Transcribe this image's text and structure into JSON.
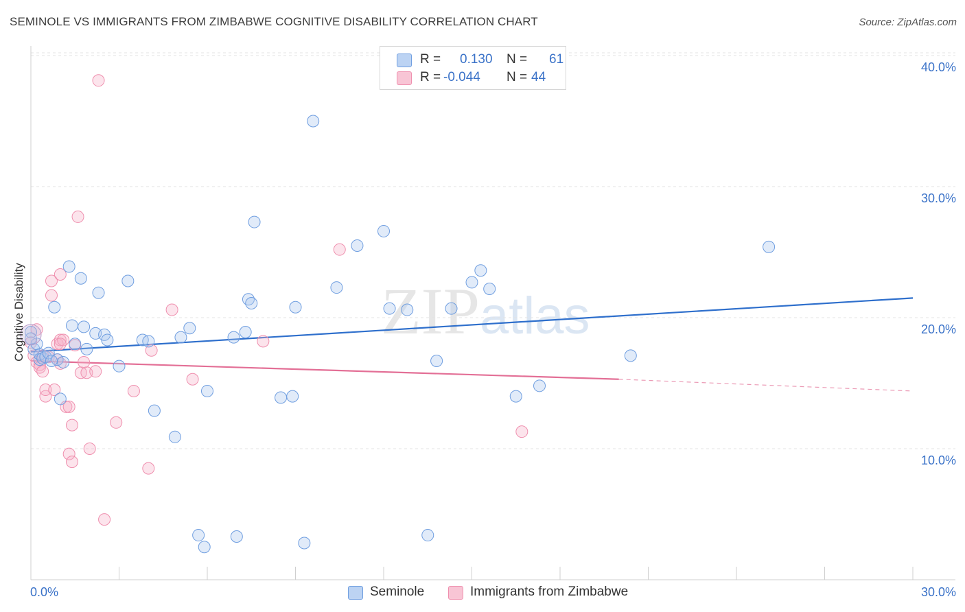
{
  "title": "SEMINOLE VS IMMIGRANTS FROM ZIMBABWE COGNITIVE DISABILITY CORRELATION CHART",
  "source": "Source: ZipAtlas.com",
  "watermark": {
    "zip": "ZIP",
    "atlas": "atlas"
  },
  "legend": {
    "rows": [
      {
        "r_label": "R =",
        "r_value": "0.130",
        "n_label": "N =",
        "n_value": "61"
      },
      {
        "r_label": "R =",
        "r_value": "-0.044",
        "n_label": "N =",
        "n_value": "44"
      }
    ]
  },
  "bottom_legend": [
    "Seminole",
    "Immigrants from Zimbabwe"
  ],
  "chart_data": {
    "type": "scatter",
    "title": "SEMINOLE VS IMMIGRANTS FROM ZIMBABWE COGNITIVE DISABILITY CORRELATION CHART",
    "xlabel": "",
    "ylabel": "Cognitive Disability",
    "xlim": [
      0,
      30
    ],
    "ylim": [
      0,
      40
    ],
    "x_tick_labels": [
      "0.0%",
      "30.0%"
    ],
    "y_tick_labels": [
      "10.0%",
      "20.0%",
      "30.0%",
      "40.0%"
    ],
    "y_ticks": [
      10,
      20,
      30,
      40
    ],
    "grid": true,
    "legend_position": "top-center",
    "colors": {
      "seminole": "#6f9ee0",
      "zimbabwe": "#ef8fae",
      "seminole_line": "#2e6fcc",
      "zimbabwe_line": "#e36f96",
      "tick_text": "#3a72c8"
    },
    "series": [
      {
        "name": "Seminole",
        "r": 0.13,
        "n": 61,
        "trend": {
          "x": [
            0,
            30
          ],
          "y": [
            17.4,
            21.5
          ]
        },
        "points": [
          [
            0.0,
            18.9
          ],
          [
            0.1,
            17.6
          ],
          [
            0.2,
            18.0
          ],
          [
            0.3,
            16.8
          ],
          [
            0.3,
            17.2
          ],
          [
            0.4,
            16.9
          ],
          [
            0.5,
            17.0
          ],
          [
            0.6,
            17.3
          ],
          [
            0.8,
            20.8
          ],
          [
            0.9,
            16.8
          ],
          [
            1.0,
            13.8
          ],
          [
            1.1,
            16.6
          ],
          [
            1.3,
            23.9
          ],
          [
            1.4,
            19.4
          ],
          [
            1.5,
            18.0
          ],
          [
            1.7,
            23.0
          ],
          [
            1.8,
            19.3
          ],
          [
            1.9,
            17.6
          ],
          [
            2.2,
            18.8
          ],
          [
            2.3,
            21.9
          ],
          [
            2.5,
            18.7
          ],
          [
            2.6,
            18.3
          ],
          [
            3.0,
            16.3
          ],
          [
            3.3,
            22.8
          ],
          [
            3.8,
            18.3
          ],
          [
            4.0,
            18.2
          ],
          [
            4.2,
            12.9
          ],
          [
            4.9,
            10.9
          ],
          [
            5.1,
            18.5
          ],
          [
            5.4,
            19.2
          ],
          [
            5.7,
            3.4
          ],
          [
            5.9,
            2.5
          ],
          [
            6.0,
            14.4
          ],
          [
            6.9,
            18.5
          ],
          [
            7.0,
            3.3
          ],
          [
            7.3,
            18.9
          ],
          [
            7.4,
            21.4
          ],
          [
            7.5,
            21.1
          ],
          [
            7.6,
            27.3
          ],
          [
            8.5,
            13.9
          ],
          [
            8.9,
            14.0
          ],
          [
            9.0,
            20.8
          ],
          [
            9.3,
            2.8
          ],
          [
            9.6,
            35.0
          ],
          [
            10.4,
            22.3
          ],
          [
            11.1,
            25.5
          ],
          [
            12.0,
            26.6
          ],
          [
            12.2,
            20.7
          ],
          [
            12.8,
            20.6
          ],
          [
            13.5,
            3.4
          ],
          [
            13.8,
            16.7
          ],
          [
            14.3,
            20.7
          ],
          [
            15.0,
            22.7
          ],
          [
            15.3,
            23.6
          ],
          [
            15.6,
            22.2
          ],
          [
            16.5,
            14.0
          ],
          [
            17.3,
            14.8
          ],
          [
            20.4,
            17.1
          ],
          [
            25.1,
            25.4
          ],
          [
            0.0,
            18.4
          ],
          [
            0.7,
            16.7
          ]
        ]
      },
      {
        "name": "Immigrants from Zimbabwe",
        "r": -0.044,
        "n": 44,
        "trend": {
          "x": [
            0,
            20.0
          ],
          "y": [
            16.7,
            15.3
          ]
        },
        "trend_dashed": {
          "x": [
            20.0,
            30
          ],
          "y": [
            15.3,
            14.4
          ]
        },
        "points": [
          [
            0.0,
            18.1
          ],
          [
            0.1,
            17.1
          ],
          [
            0.2,
            16.6
          ],
          [
            0.2,
            19.1
          ],
          [
            0.3,
            16.4
          ],
          [
            0.3,
            16.2
          ],
          [
            0.4,
            15.9
          ],
          [
            0.5,
            14.0
          ],
          [
            0.5,
            14.5
          ],
          [
            0.6,
            17.0
          ],
          [
            0.7,
            22.8
          ],
          [
            0.7,
            21.7
          ],
          [
            0.8,
            14.5
          ],
          [
            0.9,
            18.0
          ],
          [
            1.0,
            18.3
          ],
          [
            1.0,
            16.5
          ],
          [
            1.1,
            18.3
          ],
          [
            1.0,
            23.3
          ],
          [
            1.2,
            13.2
          ],
          [
            1.3,
            13.2
          ],
          [
            1.3,
            9.6
          ],
          [
            1.4,
            9.0
          ],
          [
            1.4,
            11.8
          ],
          [
            1.5,
            17.9
          ],
          [
            1.6,
            27.7
          ],
          [
            1.7,
            15.8
          ],
          [
            1.8,
            16.6
          ],
          [
            1.9,
            15.8
          ],
          [
            2.0,
            10.0
          ],
          [
            2.2,
            15.9
          ],
          [
            2.3,
            38.1
          ],
          [
            2.5,
            4.6
          ],
          [
            2.9,
            12.0
          ],
          [
            3.5,
            14.4
          ],
          [
            4.0,
            8.5
          ],
          [
            4.1,
            17.5
          ],
          [
            4.8,
            20.6
          ],
          [
            5.5,
            15.3
          ],
          [
            7.9,
            18.2
          ],
          [
            10.5,
            25.2
          ],
          [
            16.7,
            11.3
          ],
          [
            0.9,
            16.8
          ],
          [
            1.0,
            18.0
          ],
          [
            0.4,
            17.1
          ]
        ]
      }
    ]
  }
}
